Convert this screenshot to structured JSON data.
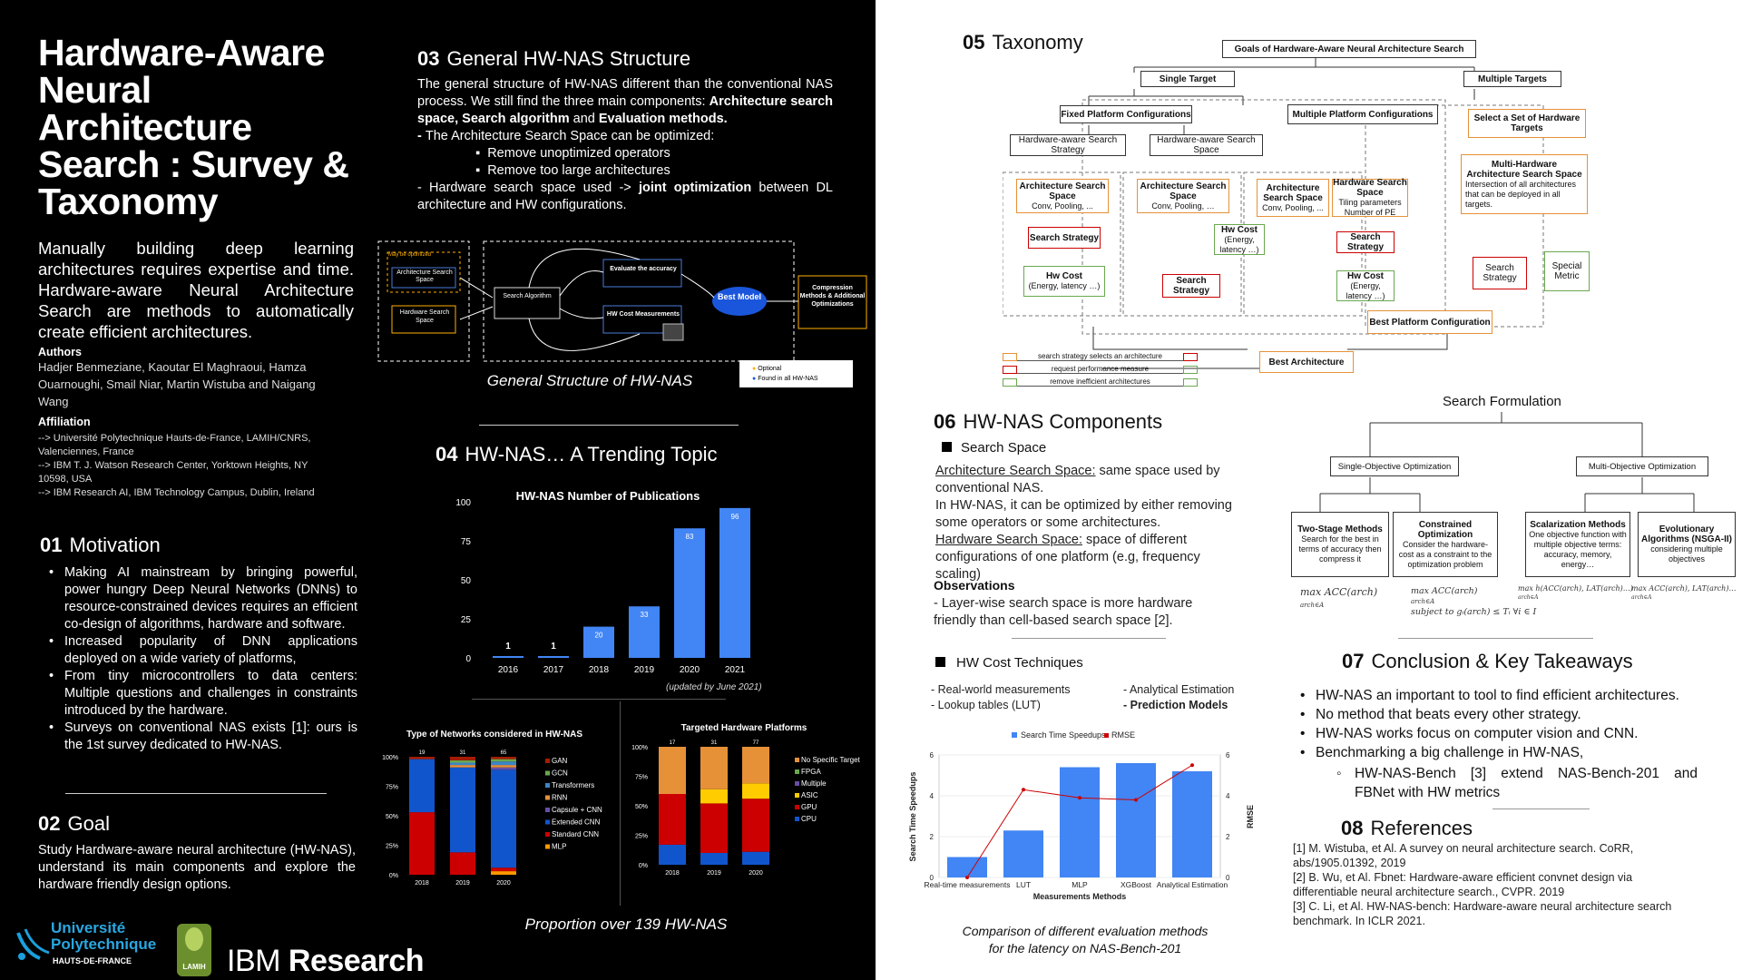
{
  "title": "Hardware-Aware Neural Architecture Search : Survey & Taxonomy",
  "intro": "Manually building deep learning architectures requires expertise and time. Hardware-aware Neural Architecture Search are methods to automatically create efficient architectures.",
  "authors": {
    "label": "Authors",
    "names": "Hadjer Benmeziane, Kaoutar El Maghraoui, Hamza Ouarnoughi, Smail Niar, Martin Wistuba and Naigang Wang"
  },
  "affiliation": {
    "label": "Affiliation",
    "lines": [
      " --> Université Polytechnique Hauts-de-France, LAMIH/CNRS, Valenciennes, France",
      "--> IBM T. J. Watson Research Center, Yorktown Heights, NY 10598, USA",
      "--> IBM Research AI, IBM Technology Campus, Dublin, Ireland"
    ]
  },
  "motivation": {
    "num": "01",
    "title": "Motivation",
    "items": [
      " Making AI mainstream by bringing powerful, power hungry Deep Neural Networks (DNNs) to resource-constrained devices requires an efficient co-design of algorithms, hardware and software.",
      "Increased popularity of DNN applications deployed on a wide variety of platforms,",
      "From tiny microcontrollers to data centers: Multiple questions and challenges in constraints introduced by the hardware.",
      "Surveys on conventional NAS exists [1]: ours is the 1st survey dedicated to HW-NAS."
    ]
  },
  "goal": {
    "num": "02",
    "title": "Goal",
    "text": "Study Hardware-aware neural architecture (HW-NAS), understand its main components and explore the hardware friendly design options."
  },
  "logos": {
    "univ_line1": "Université",
    "univ_line2": "Polytechnique",
    "univ_line3": "HAUTS-DE-FRANCE",
    "lamih": "LAMIH",
    "ibm_light": "IBM ",
    "ibm_bold": "Research"
  },
  "structure": {
    "num": "03",
    "title": "General HW-NAS Structure",
    "p1a": "The general structure of HW-NAS  different than the conventional NAS process. We still find the three main components: ",
    "p1b": "Architecture search space, Search algorithm",
    "p1c": " and ",
    "p1d": "Evaluation methods.",
    "p2a": "- ",
    "p2b": "The Architecture Search Space can be optimized:",
    "sub": [
      "Remove unoptimized operators",
      "Remove too large architectures"
    ],
    "p3a": "- Hardware search space used -> ",
    "p3b": "joint optimization",
    "p3c": " between DL architecture and HW configurations.",
    "diagram": {
      "maybe": "May be optimized",
      "arch_space": "Architecture Search Space",
      "hw_space": "Hardware Search Space",
      "search_algo": "Search Algorithm",
      "eval_acc": "Evaluate the accuracy",
      "hw_cost": "HW Cost Measurements",
      "best": "Best Model",
      "compression": "Compression Methods & Additional Optimizations",
      "legend_optional": "Optional",
      "legend_found": "Found in all HW-NAS"
    },
    "caption": "General Structure of HW-NAS"
  },
  "trending": {
    "num": "04",
    "title": "HW-NAS… A Trending Topic",
    "note": "(updated by June 2021)",
    "caption": "Proportion over 139 HW-NAS"
  },
  "taxonomy": {
    "num": "05",
    "title": "Taxonomy",
    "goals": "Goals of Hardware-Aware Neural Architecture Search",
    "single": "Single Target",
    "multiple": "Multiple Targets",
    "fixed": "Fixed Platform Configurations",
    "multi_plat": "Multiple Platform Configurations",
    "select_set": "Select a Set of Hardware Targets",
    "hw_strategy": "Hardware-aware Search Strategy",
    "hw_space": "Hardware-aware Search Space",
    "arch_space": "Architecture Search Space",
    "conv": "Conv, Pooling, ...",
    "conv2": "Conv, Pooling, …",
    "search_strategy": "Search Strategy",
    "hw_cost": "Hw Cost",
    "hw_cost_sub": "(Energy, latency …)",
    "hw_cost_sub2": "(Energy, latency …)",
    "hw_space_b": "Hardware Search Space",
    "tiling": "Tiling parameters Number of PE",
    "multi_hw": "Multi-Hardware Architecture Search Space",
    "intersection": "Intersection of all architectures that can be deployed in all targets.",
    "special_metric": "Special Metric",
    "best_platform": "Best Platform Configuration",
    "best_arch": "Best Architecture",
    "legend": [
      "search strategy selects an architecture",
      "request performance measure",
      "remove inefficient architectures"
    ]
  },
  "components": {
    "num": "06",
    "title": "HW-NAS Components",
    "search_space": "Search Space",
    "arch_u": "Architecture Search Space:",
    "arch_t": " same space used by conventional NAS.",
    "hwnas_t": "In HW-NAS, it can be optimized by either removing some operators or some architectures.",
    "hw_u": "Hardware Search Space:",
    "hw_t": "  space of different configurations of one platform (e.g, frequency scaling)",
    "obs_label": "Observations",
    "obs_text": "- Layer-wise search space is more hardware friendly than cell-based search space [2].",
    "cost_title": "HW Cost Techniques",
    "cost_l1": "- Real-world measurements",
    "cost_l2": "- Lookup tables (LUT)",
    "cost_r1": "- Analytical Estimation",
    "cost_r2": "- Prediction Models",
    "chart_caption": "Comparison of different evaluation methods for the latency on NAS-Bench-201"
  },
  "search_formulation": {
    "title": "Search Formulation",
    "single": "Single-Objective Optimization",
    "multi": "Multi-Objective Optimization",
    "two_stage_t": "Two-Stage Methods",
    "two_stage_d": "Search for the best in terms of accuracy then compress it",
    "constrained_t": "Constrained Optimization",
    "constrained_d": "Consider the hardware-cost as a constraint to the optimization problem",
    "scalar_t": "Scalarization Methods",
    "scalar_d": "One objective function with multiple objective terms: accuracy, memory, energy…",
    "evo_t": "Evolutionary Algorithms (NSGA-II)",
    "evo_d": "considering multiple objectives",
    "f1": "max ACC(arch)",
    "f1s": "arch∈A",
    "f2": "max ACC(arch)",
    "f2s": "arch∈A",
    "f2b": "subject to gᵢ(arch) ≤ Tᵢ ∀i ∈ I",
    "f3": "max h(ACC(arch), LAT(arch)…)",
    "f3s": "arch∈A",
    "f4": "max ACC(arch), LAT(arch)…",
    "f4s": "arch∈A"
  },
  "conclusion": {
    "num": "07",
    "title": "Conclusion & Key Takeaways",
    "items": [
      "HW-NAS  an important to tool  to find efficient architectures.",
      "No method that beats every other strategy.",
      "HW-NAS works focus on computer vision and CNN.",
      "Benchmarking a big challenge in HW-NAS,"
    ],
    "sub": "HW-NAS-Bench [3] extend NAS-Bench-201 and FBNet with HW metrics"
  },
  "references": {
    "num": "08",
    "title": "References",
    "items": [
      "[1] M. Wistuba, et Al. A survey on neural architecture search. CoRR, abs/1905.01392, 2019",
      "[2] B. Wu, et Al. Fbnet: Hardware-aware efficient convnet design via differentiable neural architecture search., CVPR. 2019",
      "[3] C. Li, et Al. HW-NAS-bench: Hardware-aware neural architecture search benchmark. In ICLR 2021."
    ]
  },
  "colors": {
    "bar_blue": "#4285f4",
    "nets": [
      "#cc0000",
      "#ff9900",
      "#1155cc",
      "#674ea7",
      "#e69138",
      "#3d85c6",
      "#6aa84f",
      "#a61c00"
    ]
  },
  "chart_data": [
    {
      "type": "bar",
      "title": "HW-NAS Number of Publications",
      "categories": [
        "2016",
        "2017",
        "2018",
        "2019",
        "2020",
        "2021"
      ],
      "values": [
        1,
        1,
        20,
        33,
        83,
        96
      ],
      "yticks": [
        "0",
        "25",
        "50",
        "75",
        "100"
      ],
      "ylim": [
        0,
        100
      ]
    },
    {
      "type": "bar",
      "title": "Type of Networks considered in HW-NAS",
      "categories": [
        "2018",
        "2019",
        "2020"
      ],
      "top_labels": [
        "19",
        "31",
        "65"
      ],
      "yticks": [
        "0%",
        "25%",
        "50%",
        "75%",
        "100%"
      ],
      "series": [
        {
          "name": "MLP",
          "color": "#ff9900",
          "values": [
            0,
            0,
            3
          ]
        },
        {
          "name": "Standard CNN",
          "color": "#cc0000",
          "values": [
            53,
            19,
            3
          ]
        },
        {
          "name": "Extended CNN",
          "color": "#1155cc",
          "values": [
            45,
            72,
            83
          ]
        },
        {
          "name": "Capsule + CNN",
          "color": "#674ea7",
          "values": [
            0,
            0,
            2
          ]
        },
        {
          "name": "RNN",
          "color": "#e69138",
          "values": [
            0,
            2,
            2
          ]
        },
        {
          "name": "Transformers",
          "color": "#3d85c6",
          "values": [
            0,
            2,
            3
          ]
        },
        {
          "name": "GCN",
          "color": "#6aa84f",
          "values": [
            0,
            2,
            2
          ]
        },
        {
          "name": "GAN",
          "color": "#a61c00",
          "values": [
            2,
            3,
            2
          ]
        }
      ]
    },
    {
      "type": "bar",
      "title": "Targeted Hardware Platforms",
      "categories": [
        "2018",
        "2019",
        "2020"
      ],
      "top_labels": [
        "17",
        "31",
        "77"
      ],
      "yticks": [
        "0%",
        "25%",
        "50%",
        "75%",
        "100%"
      ],
      "series": [
        {
          "name": "CPU",
          "color": "#1155cc",
          "values": [
            17,
            10,
            11
          ]
        },
        {
          "name": "GPU",
          "color": "#cc0000",
          "values": [
            43,
            42,
            45
          ]
        },
        {
          "name": "ASIC",
          "color": "#ffcc00",
          "values": [
            0,
            12,
            13
          ]
        },
        {
          "name": "Multiple",
          "color": "#674ea7",
          "values": [
            0,
            0,
            0
          ]
        },
        {
          "name": "FPGA",
          "color": "#6aa84f",
          "values": [
            0,
            0,
            0
          ]
        },
        {
          "name": "No Specific Target",
          "color": "#e69138",
          "values": [
            40,
            36,
            31
          ]
        }
      ]
    },
    {
      "type": "bar",
      "legend": [
        "Search Time Speedups",
        "RMSE"
      ],
      "categories": [
        "Real-time measurements",
        "LUT",
        "MLP",
        "XGBoost",
        "Analytical Estimation"
      ],
      "speedups": [
        1,
        2.3,
        5.4,
        5.6,
        5.2
      ],
      "rmse": [
        0,
        4.3,
        3.9,
        3.8,
        5.5
      ],
      "ylabel": "Search Time Speedups",
      "y2label": "RMSE",
      "xlabel": "Measurements Methods",
      "yticks": [
        "0",
        "2",
        "4",
        "6"
      ],
      "ylim": [
        0,
        6
      ]
    }
  ]
}
